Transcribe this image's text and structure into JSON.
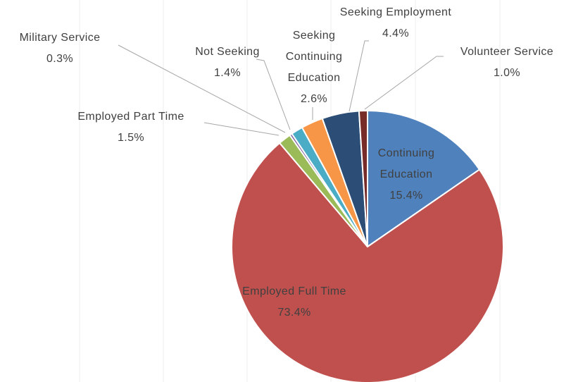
{
  "chart_data": {
    "type": "pie",
    "categories": [
      "Continuing Education",
      "Employed Full Time",
      "Employed Part Time",
      "Military Service",
      "Not Seeking",
      "Seeking Continuing Education",
      "Seeking Employment",
      "Volunteer Service"
    ],
    "values": [
      15.4,
      73.4,
      1.5,
      0.3,
      1.4,
      2.6,
      4.4,
      1.0
    ],
    "value_labels": [
      "15.4%",
      "73.4%",
      "1.5%",
      "0.3%",
      "1.4%",
      "2.6%",
      "4.4%",
      "1.0%"
    ],
    "colors": [
      "#4f81bd",
      "#c0504d",
      "#9bbb59",
      "#8064a2",
      "#4bacc6",
      "#f79646",
      "#2c4d75",
      "#772c2a"
    ]
  }
}
